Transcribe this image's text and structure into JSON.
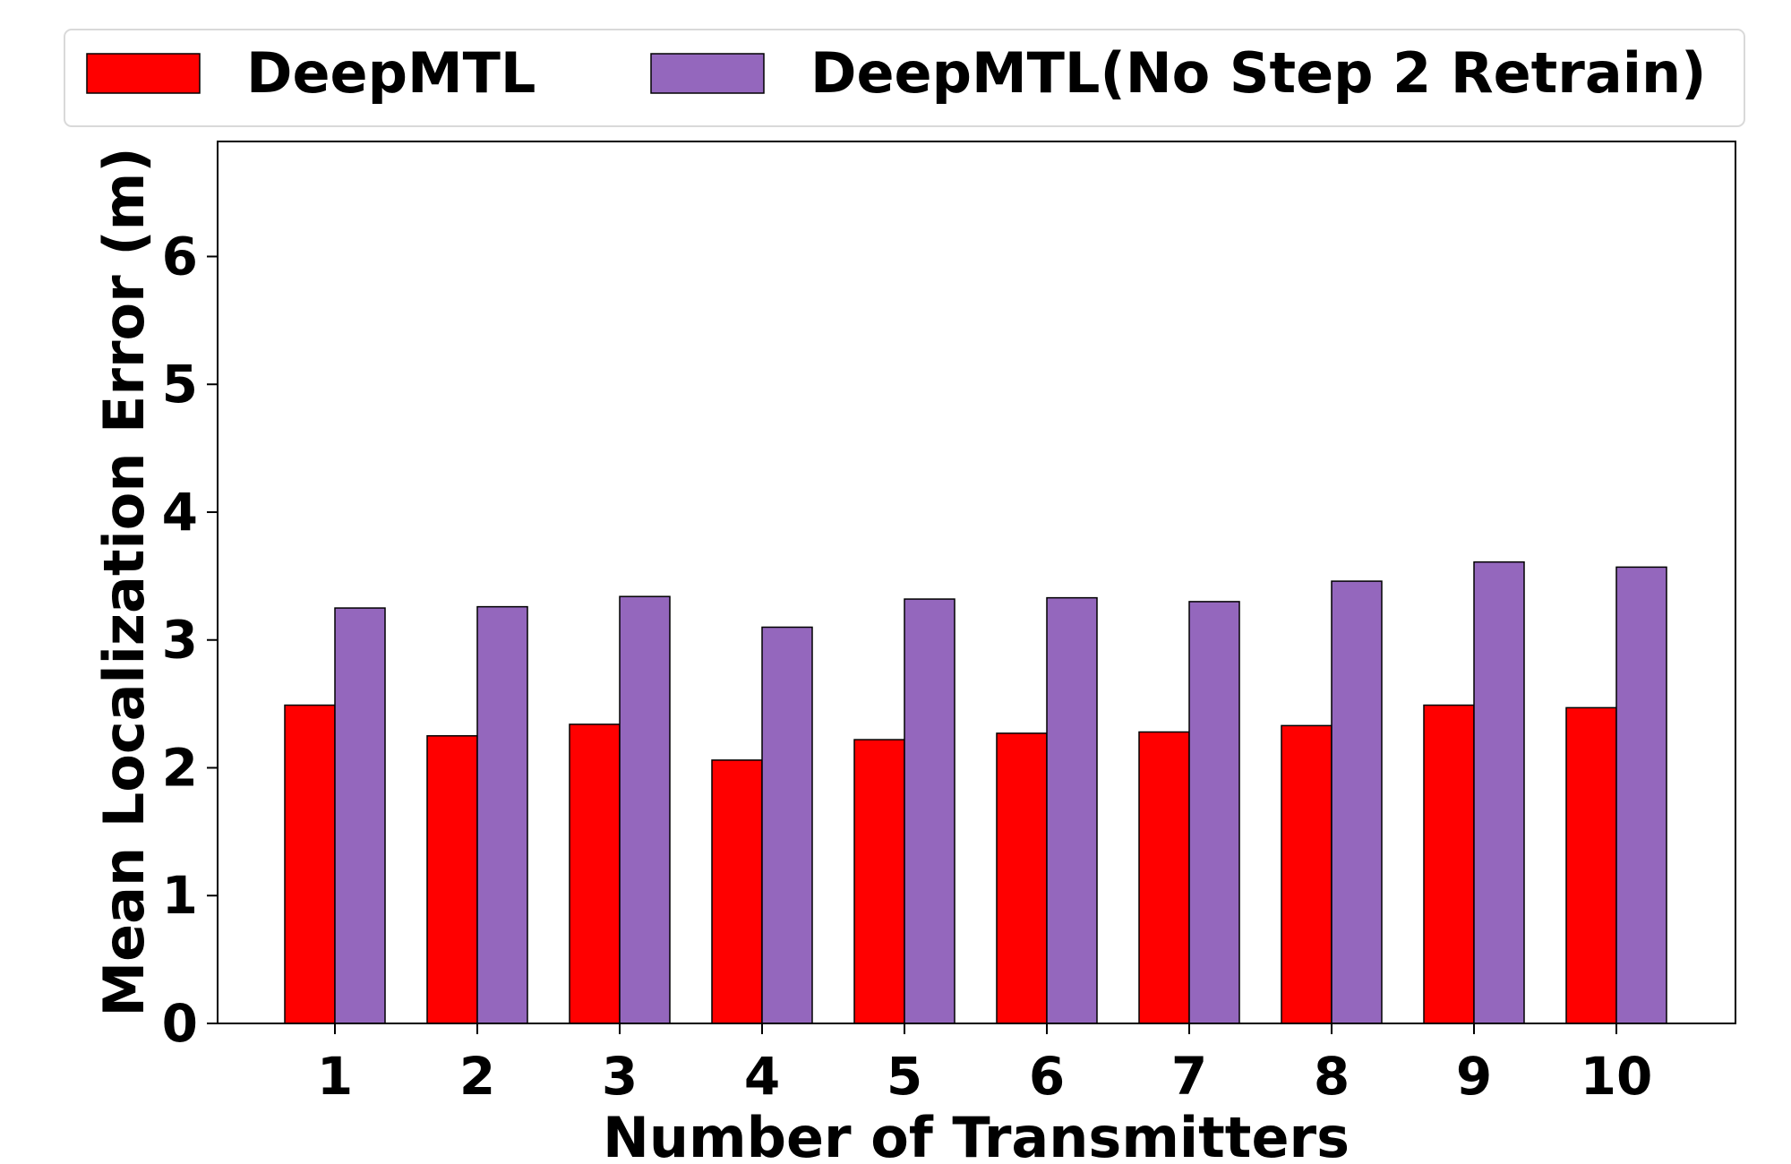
{
  "chart_data": {
    "type": "bar",
    "xlabel": "Number of Transmitters",
    "ylabel": "Mean Localization Error (m)",
    "categories": [
      "1",
      "2",
      "3",
      "4",
      "5",
      "6",
      "7",
      "8",
      "9",
      "10"
    ],
    "series": [
      {
        "name": "DeepMTL",
        "color": "#ff0000",
        "values": [
          2.49,
          2.25,
          2.34,
          2.06,
          2.22,
          2.27,
          2.28,
          2.33,
          2.49,
          2.47
        ]
      },
      {
        "name": "DeepMTL(No Step 2 Retrain)",
        "color": "#9467bd",
        "values": [
          3.25,
          3.26,
          3.34,
          3.1,
          3.32,
          3.33,
          3.3,
          3.46,
          3.61,
          3.57
        ]
      }
    ],
    "yticks": [
      0,
      1,
      2,
      3,
      4,
      5,
      6
    ],
    "ylim": [
      0,
      6.9
    ],
    "grid": false,
    "legend_position": "top"
  }
}
